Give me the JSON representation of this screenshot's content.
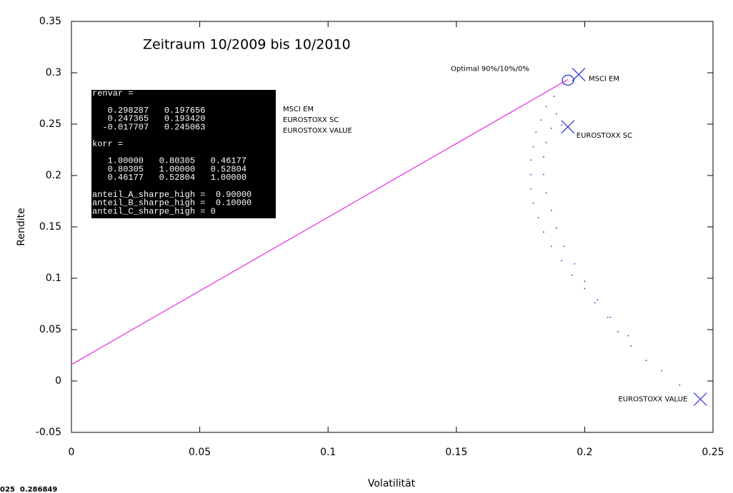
{
  "chart_data": {
    "type": "scatter",
    "title": "Zeitraum 10/2009 bis 10/2010",
    "x_label": "Volatilität",
    "y_label": "Rendite",
    "xlim": [
      0,
      0.25
    ],
    "ylim": [
      -0.05,
      0.35
    ],
    "xticks": [
      0,
      0.05,
      0.1,
      0.15,
      0.2,
      0.25
    ],
    "yticks": [
      -0.05,
      0,
      0.05,
      0.1,
      0.15,
      0.2,
      0.25,
      0.3,
      0.35
    ],
    "frontier": {
      "color": "#2b2bd0",
      "x": [
        0.192,
        0.188,
        0.185,
        0.183,
        0.181,
        0.18,
        0.179,
        0.179,
        0.179,
        0.18,
        0.182,
        0.184,
        0.187,
        0.191,
        0.195,
        0.2,
        0.204,
        0.209,
        0.213,
        0.218,
        0.224,
        0.23,
        0.237,
        0.189,
        0.187,
        0.185,
        0.184,
        0.184,
        0.185,
        0.187,
        0.189,
        0.192,
        0.196,
        0.2,
        0.205,
        0.21,
        0.217,
        0.191
      ],
      "y": [
        0.289,
        0.277,
        0.267,
        0.254,
        0.242,
        0.228,
        0.215,
        0.201,
        0.187,
        0.173,
        0.159,
        0.145,
        0.131,
        0.117,
        0.103,
        0.09,
        0.076,
        0.062,
        0.048,
        0.034,
        0.02,
        0.01,
        -0.004,
        0.26,
        0.246,
        0.232,
        0.218,
        0.201,
        0.183,
        0.166,
        0.149,
        0.131,
        0.114,
        0.097,
        0.079,
        0.062,
        0.044,
        0.249
      ]
    },
    "tangent": {
      "color": "#e000e0",
      "x": [
        0,
        0.1935
      ],
      "y": [
        0.016,
        0.2935
      ]
    },
    "marker_color": "#2b2bd0",
    "assets": [
      {
        "label": "MSCI EM",
        "x": 0.197656,
        "y": 0.298287
      },
      {
        "label": "EUROSTOXX SC",
        "x": 0.19342,
        "y": 0.247365
      },
      {
        "label": "EUROSTOXX VALUE",
        "x": 0.245063,
        "y": -0.017707
      }
    ],
    "optimal": {
      "label": "Optimal 90%/10%/0%",
      "x": 0.1935,
      "y": 0.2935
    },
    "console": {
      "renvar_label": "renvar =",
      "renvar_rows": [
        "   0.298287   0.197656",
        "   0.247365   0.193420",
        "  -0.017707   0.245063"
      ],
      "korr_label": "korr =",
      "korr_rows": [
        "   1.00000   0.80305   0.46177",
        "   0.80305   1.00000   0.52804",
        "   0.46177   0.52804   1.00000"
      ],
      "sharpe_rows": [
        "anteil_A_sharpe_high =  0.90000",
        "anteil_B_sharpe_high =  0.10000",
        "anteil_C_sharpe_high = 0"
      ]
    },
    "console_legend": [
      "MSCI EM",
      "EUROSTOXX SC",
      "EUROSTOXX VALUE"
    ],
    "footer_fragment": "025  0.286849"
  }
}
